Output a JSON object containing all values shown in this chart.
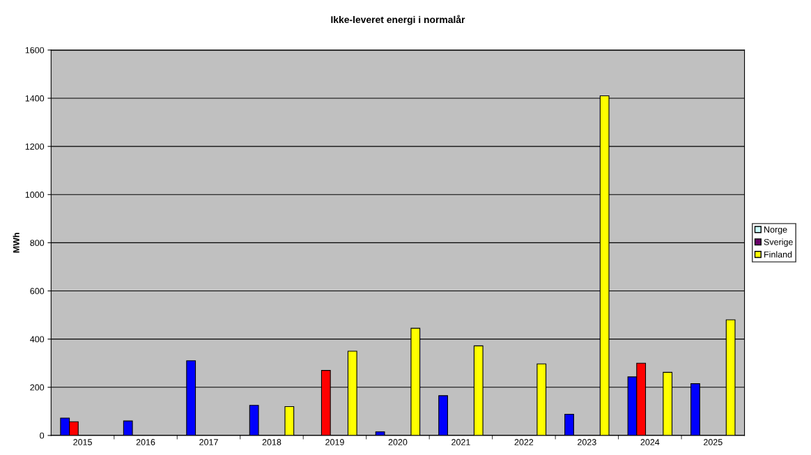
{
  "chart_data": {
    "type": "bar",
    "title": "Ikke-leveret energi i normalår",
    "ylabel": "MWh",
    "categories": [
      "2015",
      "2016",
      "2017",
      "2018",
      "2019",
      "2020",
      "2021",
      "2022",
      "2023",
      "2024",
      "2025"
    ],
    "series": [
      {
        "color": "#0000ff",
        "values": [
          72,
          60,
          310,
          125,
          null,
          15,
          165,
          null,
          88,
          243,
          215
        ]
      },
      {
        "color": "#ff0000",
        "values": [
          57,
          null,
          null,
          null,
          270,
          null,
          null,
          null,
          null,
          300,
          null
        ]
      },
      {
        "name": "Norge",
        "color": "#ccffff",
        "values": [
          null,
          null,
          null,
          null,
          null,
          null,
          null,
          null,
          null,
          null,
          null
        ]
      },
      {
        "name": "Sverige",
        "color": "#660066",
        "values": [
          null,
          null,
          null,
          null,
          null,
          null,
          null,
          null,
          null,
          null,
          null
        ]
      },
      {
        "name": "Finland",
        "color": "#ffff00",
        "values": [
          null,
          null,
          null,
          120,
          350,
          445,
          372,
          297,
          1410,
          262,
          480
        ]
      }
    ],
    "ylim": [
      0,
      1600
    ],
    "yticks": [
      0,
      200,
      400,
      600,
      800,
      1000,
      1200,
      1400,
      1600
    ],
    "grid": "y",
    "legend": "right"
  }
}
